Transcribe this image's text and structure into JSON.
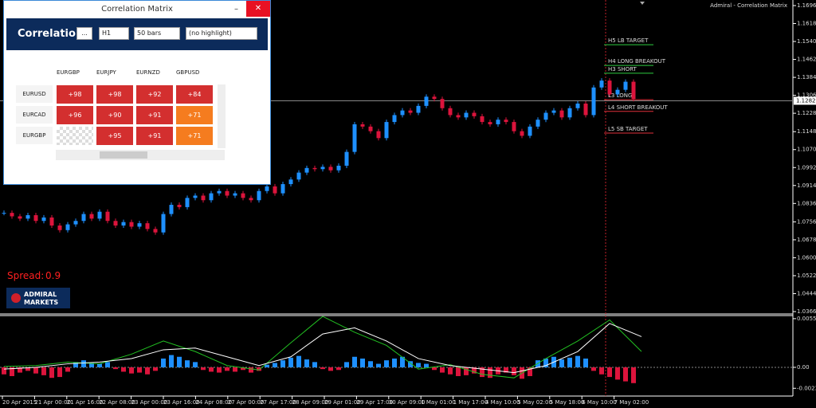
{
  "window": {
    "title": "Correlation Matrix",
    "header": "Correlation",
    "button": "...",
    "timeframe": "H1",
    "bars": "50 bars",
    "highlight": "(no highlight)",
    "columns": [
      "EURGBP",
      "EURJPY",
      "EURNZD",
      "GBPUSD"
    ],
    "rows": [
      {
        "label": "EURUSD",
        "cells": [
          "+98",
          "+98",
          "+92",
          "+84"
        ]
      },
      {
        "label": "EURCAD",
        "cells": [
          "+96",
          "+90",
          "+91",
          "+71"
        ]
      },
      {
        "label": "EURGBP",
        "cells": [
          null,
          "+95",
          "+91",
          "+71"
        ]
      }
    ]
  },
  "chart": {
    "title": "Admiral - Correlation Matrix",
    "spread_label": "Spread:",
    "spread": "0.9",
    "logo": [
      "ADMIRAL",
      "MARKETS"
    ],
    "ylim": [
      1.0366,
      1.1696
    ],
    "yticks": [
      {
        "value": 1.1696,
        "label": "1.16960"
      },
      {
        "value": 1.1618,
        "label": "1.16180"
      },
      {
        "value": 1.154,
        "label": "1.15400"
      },
      {
        "value": 1.1462,
        "label": "1.14620"
      },
      {
        "value": 1.1384,
        "label": "1.13840"
      },
      {
        "value": 1.1306,
        "label": "1.13060"
      },
      {
        "value": 1.1228,
        "label": "1.12280"
      },
      {
        "value": 1.1148,
        "label": "1.11480"
      },
      {
        "value": 1.107,
        "label": "1.10700"
      },
      {
        "value": 1.0992,
        "label": "1.09920"
      },
      {
        "value": 1.0914,
        "label": "1.09140"
      },
      {
        "value": 1.0836,
        "label": "1.08360"
      },
      {
        "value": 1.0756,
        "label": "1.07560"
      },
      {
        "value": 1.0678,
        "label": "1.06780"
      },
      {
        "value": 1.06,
        "label": "1.06000"
      },
      {
        "value": 1.0522,
        "label": "1.05220"
      },
      {
        "value": 1.0444,
        "label": "1.04440"
      },
      {
        "value": 1.0366,
        "label": "1.03660"
      }
    ],
    "current_price": {
      "value": 1.12822,
      "label": "1.12822"
    },
    "levels": [
      {
        "label": "H5 LB TARGET",
        "value": 1.1526,
        "color": "#2ecc40"
      },
      {
        "label": "H4 LONG BREAKOUT",
        "value": 1.1436,
        "color": "#2ecc40"
      },
      {
        "label": "H3 SHORT",
        "value": 1.1402,
        "color": "#2ecc40"
      },
      {
        "label": "L3 LONG",
        "value": 1.1287,
        "color": "#e0303a"
      },
      {
        "label": "L4 SHORT BREAKOUT",
        "value": 1.1236,
        "color": "#e0303a"
      },
      {
        "label": "L5 SB TARGET",
        "value": 1.1142,
        "color": "#e0303a"
      }
    ],
    "closes": [
      1.0795,
      1.078,
      1.077,
      1.0785,
      1.076,
      1.0775,
      1.074,
      1.072,
      1.0745,
      1.076,
      1.079,
      1.077,
      1.08,
      1.076,
      1.074,
      1.0755,
      1.0735,
      1.075,
      1.0725,
      1.071,
      1.079,
      1.083,
      1.082,
      1.086,
      1.087,
      1.085,
      1.088,
      1.089,
      1.087,
      1.088,
      1.086,
      1.085,
      1.089,
      1.091,
      1.088,
      1.092,
      1.094,
      1.097,
      1.099,
      1.0985,
      1.0995,
      1.098,
      1.1,
      1.106,
      1.118,
      1.117,
      1.115,
      1.112,
      1.119,
      1.122,
      1.124,
      1.123,
      1.126,
      1.13,
      1.129,
      1.125,
      1.122,
      1.121,
      1.123,
      1.1215,
      1.119,
      1.118,
      1.12,
      1.119,
      1.115,
      1.113,
      1.117,
      1.12,
      1.123,
      1.124,
      1.121,
      1.125,
      1.127,
      1.122,
      1.134,
      1.137,
      1.131,
      1.133,
      1.1365,
      1.129
    ],
    "up_color": "#1e90ff",
    "down_color": "#dc143c",
    "dates": [
      "20 Apr 2015",
      "21 Apr 00:00",
      "21 Apr 16:00",
      "22 Apr 08:00",
      "23 Apr 00:00",
      "23 Apr 16:00",
      "24 Apr 08:00",
      "27 Apr 00:00",
      "27 Apr 17:00",
      "28 Apr 09:00",
      "29 Apr 01:00",
      "29 Apr 17:00",
      "30 Apr 09:00",
      "1 May 01:00",
      "1 May 17:00",
      "4 May 10:00",
      "5 May 02:00",
      "5 May 18:00",
      "6 May 10:00",
      "7 May 02:00"
    ],
    "indicator": {
      "ylim": [
        -0.003,
        0.0059
      ],
      "yticks": [
        0.005547,
        {
          "value": 0,
          "label": "0.00"
        },
        -0.002388
      ],
      "histogram": [
        -0.0008,
        -0.001,
        -0.0006,
        -0.0004,
        -0.0007,
        -0.0009,
        -0.0012,
        -0.0011,
        -0.0005,
        0.0006,
        0.0008,
        0.0005,
        0.0004,
        0.0006,
        -0.0002,
        -0.0005,
        -0.0007,
        -0.0006,
        -0.0008,
        -0.0004,
        0.001,
        0.0014,
        0.0012,
        0.0008,
        0.0006,
        -0.0003,
        -0.0005,
        -0.0006,
        -0.0004,
        -0.0005,
        -0.0003,
        -0.0006,
        -0.0004,
        0.0003,
        0.0005,
        0.0008,
        0.0011,
        0.0013,
        0.0009,
        0.0006,
        -0.0002,
        -0.0004,
        -0.0003,
        0.0006,
        0.0012,
        0.001,
        0.0007,
        0.0004,
        0.0008,
        0.001,
        0.0012,
        0.0007,
        0.0005,
        0.0004,
        -0.0003,
        -0.0006,
        -0.0008,
        -0.001,
        -0.0009,
        -0.0007,
        -0.0011,
        -0.0012,
        -0.0008,
        -0.0006,
        -0.0009,
        -0.0013,
        -0.001,
        0.0008,
        0.001,
        0.0012,
        0.0009,
        0.0011,
        0.0013,
        0.001,
        -0.0004,
        -0.0008,
        -0.0011,
        -0.0014,
        -0.0016,
        -0.0018
      ],
      "series": [
        {
          "color": "#22c022",
          "values": [
            0.0001,
            0.0002,
            0.0006,
            0.0004,
            0.0015,
            0.003,
            0.0018,
            0.0002,
            -0.0003,
            0.0028,
            0.0058,
            0.004,
            0.0025,
            -0.0002,
            0.0003,
            -0.0008,
            -0.0012,
            0.001,
            0.003,
            0.0054,
            0.0018
          ]
        },
        {
          "color": "#ffffff",
          "values": [
            -0.0002,
            0,
            0.0004,
            0.0006,
            0.001,
            0.002,
            0.0022,
            0.0012,
            0.0002,
            0.0012,
            0.0038,
            0.0045,
            0.003,
            0.001,
            0.0002,
            -0.0002,
            -0.0006,
            0.0002,
            0.0018,
            0.005,
            0.0035
          ]
        }
      ]
    }
  }
}
